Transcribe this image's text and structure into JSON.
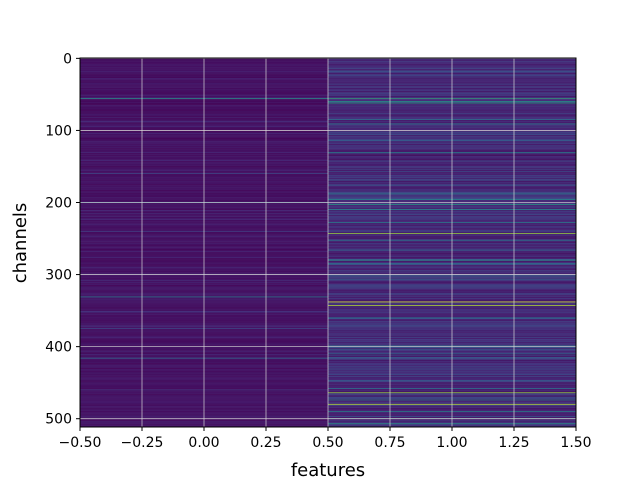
{
  "chart_data": {
    "type": "heatmap",
    "title": "",
    "xlabel": "features",
    "ylabel": "channels",
    "xlim": [
      -0.5,
      1.5
    ],
    "ylim": [
      511.5,
      -0.5
    ],
    "x_ticks": [
      -0.5,
      -0.25,
      0.0,
      0.25,
      0.5,
      0.75,
      1.0,
      1.25,
      1.5
    ],
    "x_tick_labels": [
      "−0.50",
      "−0.25",
      "0.00",
      "0.25",
      "0.50",
      "0.75",
      "1.00",
      "1.25",
      "1.50"
    ],
    "y_ticks": [
      0,
      100,
      200,
      300,
      400,
      500
    ],
    "y_tick_labels": [
      "0",
      "100",
      "200",
      "300",
      "400",
      "500"
    ],
    "grid": true,
    "colormap": "viridis",
    "columns": [
      {
        "feature": 0,
        "base_level": 0.05,
        "highlights": [
          {
            "channel": 56,
            "level": 0.55
          },
          {
            "channel": 160,
            "level": 0.22
          },
          {
            "channel": 200,
            "level": 0.35
          },
          {
            "channel": 240,
            "level": 0.2
          },
          {
            "channel": 331,
            "level": 0.42
          },
          {
            "channel": 352,
            "level": 0.18
          },
          {
            "channel": 375,
            "level": 0.22
          },
          {
            "channel": 416,
            "level": 0.35
          },
          {
            "channel": 460,
            "level": 0.18
          }
        ]
      },
      {
        "feature": 1,
        "base_level": 0.12,
        "highlights": [
          {
            "channel": 56,
            "level": 0.65
          },
          {
            "channel": 60,
            "level": 0.55
          },
          {
            "channel": 62,
            "level": 0.6
          },
          {
            "channel": 85,
            "level": 0.4
          },
          {
            "channel": 91,
            "level": 0.45
          },
          {
            "channel": 131,
            "level": 0.5
          },
          {
            "channel": 188,
            "level": 0.45
          },
          {
            "channel": 196,
            "level": 0.5
          },
          {
            "channel": 203,
            "level": 0.55
          },
          {
            "channel": 210,
            "level": 0.5
          },
          {
            "channel": 228,
            "level": 0.45
          },
          {
            "channel": 243,
            "level": 0.85
          },
          {
            "channel": 253,
            "level": 0.4
          },
          {
            "channel": 266,
            "level": 0.38
          },
          {
            "channel": 280,
            "level": 0.55
          },
          {
            "channel": 285,
            "level": 0.45
          },
          {
            "channel": 302,
            "level": 0.4
          },
          {
            "channel": 338,
            "level": 0.95
          },
          {
            "channel": 343,
            "level": 0.9
          },
          {
            "channel": 360,
            "level": 0.4
          },
          {
            "channel": 399,
            "level": 0.45
          },
          {
            "channel": 410,
            "level": 0.38
          },
          {
            "channel": 458,
            "level": 0.4
          },
          {
            "channel": 464,
            "level": 0.85
          },
          {
            "channel": 474,
            "level": 0.45
          },
          {
            "channel": 480,
            "level": 0.9
          },
          {
            "channel": 490,
            "level": 0.45
          },
          {
            "channel": 500,
            "level": 0.5
          },
          {
            "channel": 507,
            "level": 0.55
          }
        ]
      }
    ]
  }
}
